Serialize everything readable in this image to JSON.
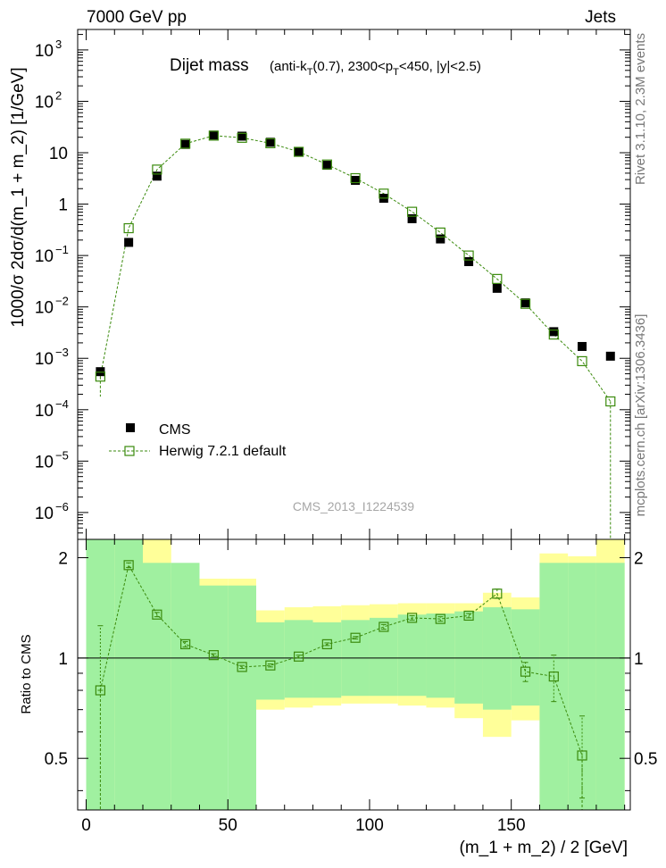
{
  "header": {
    "energy_label": "7000 GeV pp",
    "category_label": "Jets"
  },
  "side_labels": {
    "rivet": "Rivet 3.1.10,  2.3M events",
    "mcplots": "mcplots.cern.ch [arXiv:1306.3436]"
  },
  "chart_data": [
    {
      "type": "scatter",
      "title": "Dijet mass",
      "subtitle": "(anti-k_T(0.7), 2300<p_T<450, |y|<2.5)",
      "watermark": "CMS_2013_I1224539",
      "ylabel": "1000/σ 2dσ/d(m_1 + m_2) [1/GeV]",
      "yscale": "log",
      "ylim": [
        3e-07,
        2500
      ],
      "xlim": [
        -3,
        192
      ],
      "ytick_labels": [
        {
          "base": "10",
          "exp": "3",
          "value": 1000
        },
        {
          "base": "10",
          "exp": "2",
          "value": 100
        },
        {
          "base": "10",
          "exp": "",
          "value": 10
        },
        {
          "base": "1",
          "exp": "",
          "value": 1
        },
        {
          "base": "10",
          "exp": "−1",
          "value": 0.1
        },
        {
          "base": "10",
          "exp": "−2",
          "value": 0.01
        },
        {
          "base": "10",
          "exp": "−3",
          "value": 0.001
        },
        {
          "base": "10",
          "exp": "−4",
          "value": 0.0001
        },
        {
          "base": "10",
          "exp": "−5",
          "value": 1e-05
        },
        {
          "base": "10",
          "exp": "−6",
          "value": 1e-06
        }
      ],
      "legend": {
        "placement": "lower-left",
        "entries": [
          "CMS",
          "Herwig 7.2.1 default"
        ]
      },
      "x": [
        5,
        15,
        25,
        35,
        45,
        55,
        65,
        75,
        85,
        95,
        105,
        115,
        125,
        135,
        145,
        155,
        165,
        175,
        185
      ],
      "series": [
        {
          "name": "CMS",
          "marker": "filled-square",
          "color": "#000000",
          "values": [
            0.00055,
            0.18,
            3.5,
            14.5,
            22,
            21,
            16,
            10.5,
            5.7,
            2.9,
            1.3,
            0.52,
            0.21,
            0.076,
            0.023,
            0.012,
            0.0033,
            0.0017,
            0.0011
          ]
        },
        {
          "name": "Herwig 7.2.1 default",
          "marker": "open-square",
          "color": "#3a8a0c",
          "values": [
            0.00044,
            0.34,
            4.7,
            15,
            21.5,
            19.5,
            15.3,
            10.4,
            5.9,
            3.2,
            1.6,
            0.71,
            0.28,
            0.1,
            0.035,
            0.0115,
            0.0029,
            0.00088,
            0.000145
          ]
        }
      ]
    },
    {
      "type": "line",
      "ylabel": "Ratio to CMS",
      "xlabel": "(m_1 + m_2) / 2 [GeV]",
      "xlim": [
        -3,
        192
      ],
      "ylim": [
        0.35,
        2.27
      ],
      "xticks": [
        0,
        50,
        100,
        150
      ],
      "yticks": [
        0.5,
        1,
        2
      ],
      "reference_line": 1,
      "bin_edges": [
        0,
        10,
        20,
        30,
        40,
        50,
        60,
        70,
        80,
        90,
        100,
        110,
        120,
        130,
        140,
        150,
        160,
        170,
        180,
        190
      ],
      "uncertainty_bands": [
        {
          "name": "stat",
          "color": "#a0f0a0",
          "low": [
            0.35,
            0.35,
            0.35,
            0.35,
            0.35,
            0.35,
            0.75,
            0.76,
            0.76,
            0.77,
            0.77,
            0.77,
            0.76,
            0.73,
            0.7,
            0.72,
            0.35,
            0.35,
            0.35
          ],
          "high": [
            2.27,
            2.27,
            1.93,
            1.93,
            1.65,
            1.65,
            1.28,
            1.3,
            1.28,
            1.3,
            1.32,
            1.35,
            1.36,
            1.38,
            1.42,
            1.4,
            1.93,
            1.93,
            1.93
          ]
        },
        {
          "name": "syst",
          "color": "#ffff99",
          "low": [
            0.35,
            0.58,
            0.35,
            0.54,
            0.63,
            0.83,
            0.7,
            0.71,
            0.72,
            0.73,
            0.73,
            0.72,
            0.71,
            0.66,
            0.58,
            0.65,
            0.35,
            0.35,
            0.35
          ],
          "high": [
            2.27,
            2.27,
            2.27,
            1.8,
            1.73,
            1.73,
            1.39,
            1.42,
            1.43,
            1.44,
            1.45,
            1.46,
            1.46,
            1.46,
            1.57,
            1.52,
            2.06,
            2.02,
            2.27
          ]
        }
      ],
      "ratio_points": {
        "name": "Herwig 7.2.1 default",
        "x": [
          5,
          15,
          25,
          35,
          45,
          55,
          65,
          75,
          85,
          95,
          105,
          115,
          125,
          135,
          145,
          155,
          165,
          175
        ],
        "values": [
          0.8,
          1.9,
          1.35,
          1.1,
          1.02,
          0.94,
          0.95,
          1.01,
          1.1,
          1.15,
          1.24,
          1.32,
          1.31,
          1.34,
          1.56,
          0.91,
          0.88,
          0.51
        ],
        "err_low": [
          0.0,
          0.03,
          0.02,
          0.02,
          0.01,
          0.01,
          0.01,
          0.01,
          0.01,
          0.01,
          0.02,
          0.02,
          0.02,
          0.02,
          0.05,
          0.06,
          0.14,
          0.13
        ],
        "err_high": [
          0.45,
          0.03,
          0.02,
          0.02,
          0.01,
          0.01,
          0.01,
          0.01,
          0.01,
          0.01,
          0.02,
          0.02,
          0.02,
          0.02,
          0.05,
          0.06,
          0.14,
          0.16
        ]
      }
    }
  ]
}
